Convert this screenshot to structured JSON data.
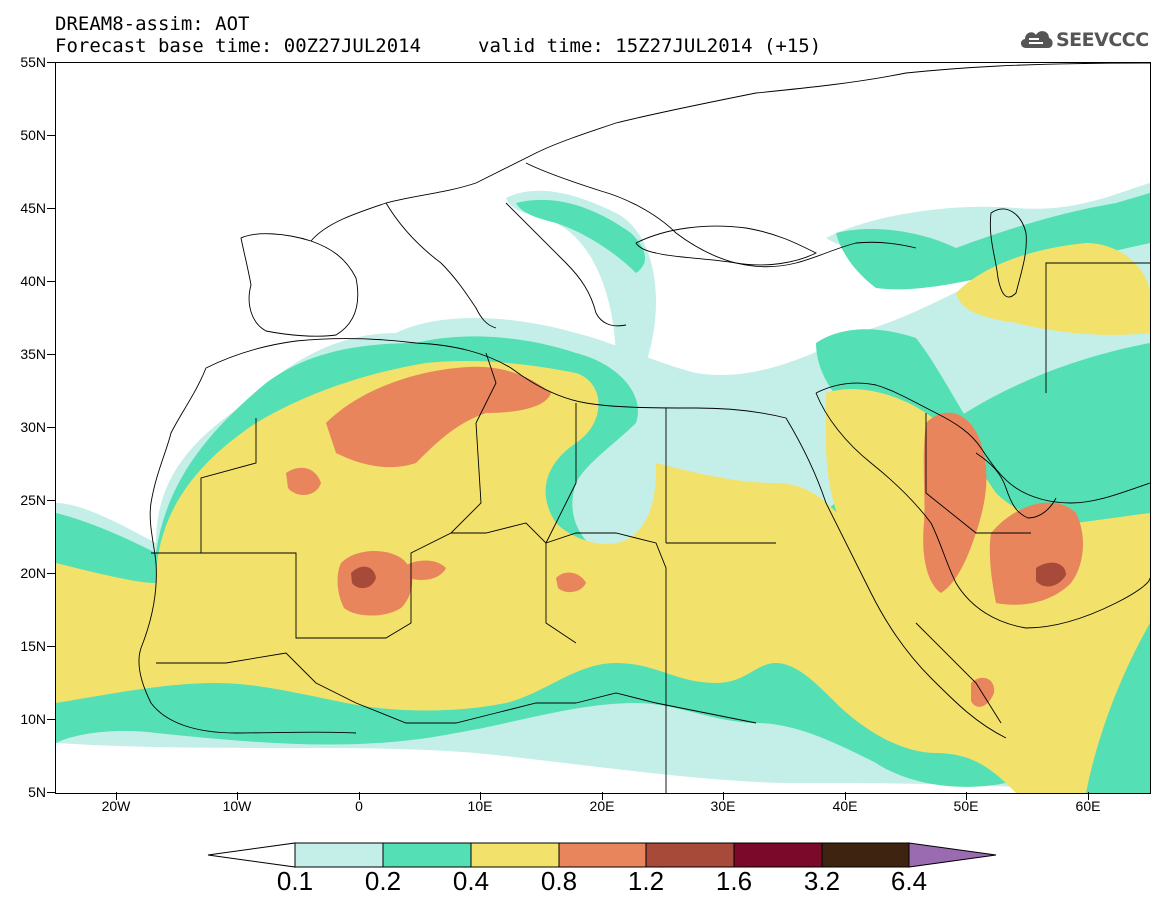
{
  "header": {
    "title_line1": "DREAM8-assim: AOT",
    "base_time_label": "Forecast base time: 00Z27JUL2014",
    "valid_time_label": "valid time: 15Z27JUL2014 (+15)"
  },
  "logo": {
    "text": "SEEVCCC",
    "icon": "cloud-icon"
  },
  "map": {
    "lat_labels": [
      "55N",
      "50N",
      "45N",
      "40N",
      "35N",
      "30N",
      "25N",
      "20N",
      "15N",
      "10N",
      "5N"
    ],
    "lon_labels": [
      "20W",
      "10W",
      "0",
      "10E",
      "20E",
      "30E",
      "40E",
      "50E",
      "60E"
    ],
    "colors": {
      "c1": "#c4efe8",
      "c2": "#55dfb4",
      "c3": "#f2e26c",
      "c4": "#e8855d",
      "c5": "#a74a3a",
      "c6": "#7b0a2a",
      "c7": "#3e2410",
      "c8": "#9a6bb0"
    }
  },
  "colorbar": {
    "labels": [
      "0.1",
      "0.2",
      "0.4",
      "0.8",
      "1.2",
      "1.6",
      "3.2",
      "6.4"
    ],
    "colors": [
      "#ffffff",
      "#c4efe8",
      "#55dfb4",
      "#f2e26c",
      "#e8855d",
      "#a74a3a",
      "#7b0a2a",
      "#3e2410",
      "#9a6bb0"
    ]
  }
}
